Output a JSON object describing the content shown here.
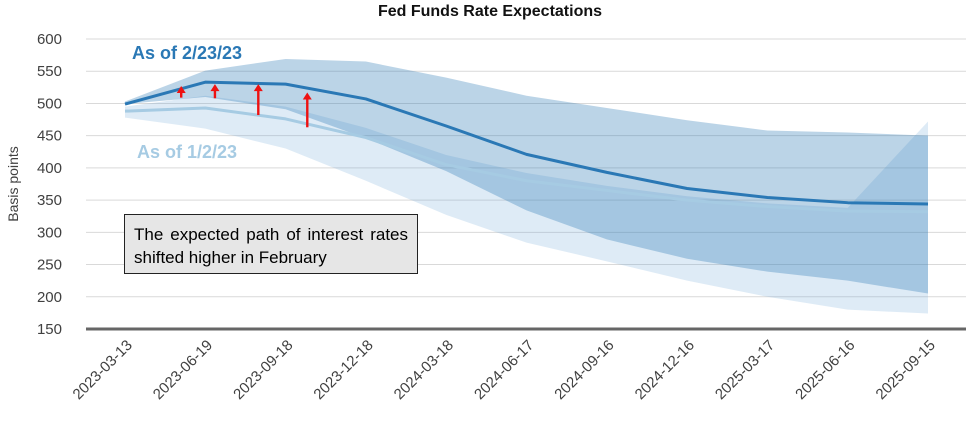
{
  "chart_data": {
    "type": "line",
    "title": "Fed Funds Rate Expectations",
    "ylabel": "Basis points",
    "xlabel": "",
    "ylim": [
      150,
      600
    ],
    "yticks": [
      150,
      200,
      250,
      300,
      350,
      400,
      450,
      500,
      550,
      600
    ],
    "grid": "horizontal",
    "x": [
      "2023-03-13",
      "2023-06-19",
      "2023-09-18",
      "2023-12-18",
      "2024-03-18",
      "2024-06-17",
      "2024-09-16",
      "2024-12-16",
      "2025-03-17",
      "2025-06-16",
      "2025-09-15"
    ],
    "series": [
      {
        "name": "As of 2/23/23",
        "color": "#2a78b5",
        "values": [
          499,
          533,
          530,
          507,
          465,
          421,
          393,
          368,
          354,
          346,
          344
        ],
        "band_upper": [
          503,
          551,
          569,
          565,
          540,
          512,
          493,
          474,
          458,
          455,
          450
        ],
        "band_lower": [
          499,
          510,
          491,
          446,
          395,
          334,
          289,
          259,
          239,
          225,
          205
        ]
      },
      {
        "name": "As of 1/2/23",
        "color": "#a6cbe3",
        "values": [
          488,
          493,
          476,
          447,
          405,
          380,
          365,
          350,
          340,
          333,
          332
        ],
        "band_upper": [
          495,
          512,
          495,
          462,
          420,
          392,
          372,
          356,
          345,
          338,
          472
        ],
        "band_lower": [
          478,
          461,
          430,
          380,
          327,
          284,
          255,
          225,
          200,
          180,
          174
        ]
      }
    ],
    "annotation": "The expected path of interest rates shifted higher in February",
    "arrow_color": "#ee1111"
  }
}
